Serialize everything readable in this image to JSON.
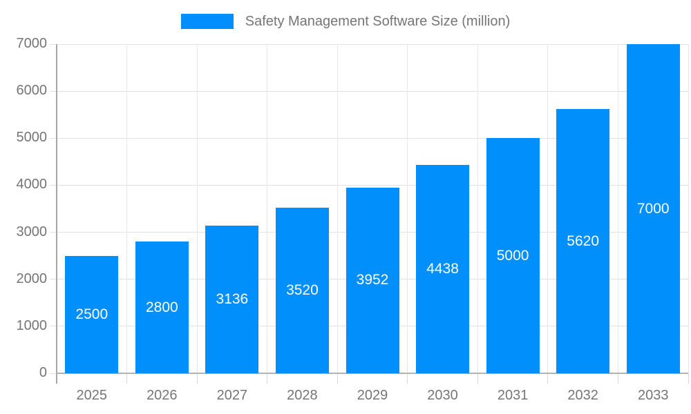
{
  "legend": {
    "label": "Safety Management Software Size (million)",
    "swatch_color": "#008FFB"
  },
  "chart_data": {
    "type": "bar",
    "title": "Safety Management Software Size (million)",
    "categories": [
      "2025",
      "2026",
      "2027",
      "2028",
      "2029",
      "2030",
      "2031",
      "2032",
      "2033"
    ],
    "values": [
      2500,
      2800,
      3136,
      3520,
      3952,
      4438,
      5000,
      5620,
      7000
    ],
    "series": [
      {
        "name": "Safety Management Software Size (million)",
        "values": [
          2500,
          2800,
          3136,
          3520,
          3952,
          4438,
          5000,
          5620,
          7000
        ]
      }
    ],
    "xlabel": "",
    "ylabel": "",
    "ylim": [
      0,
      7000
    ],
    "ytick_step": 1000,
    "grid": true,
    "legend_position": "top-center",
    "bar_color": "#008FFB",
    "value_label_color": "#ffffff",
    "axis_label_color": "#757575",
    "gridline_color": "#e0e0e0"
  }
}
